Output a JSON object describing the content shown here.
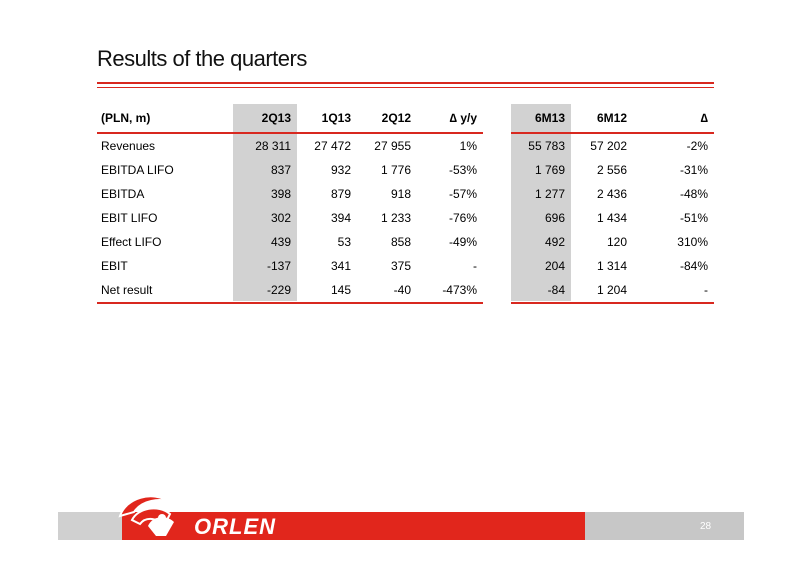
{
  "slide": {
    "title": "Results of the quarters",
    "page_number": "28",
    "brand": "ORLEN"
  },
  "table": {
    "headers": [
      "(PLN, m)",
      "2Q13",
      "1Q13",
      "2Q12",
      "∆ y/y",
      "6M13",
      "6M12",
      "∆"
    ],
    "rows": [
      [
        "Revenues",
        "28 311",
        "27 472",
        "27 955",
        "1%",
        "55 783",
        "57 202",
        "-2%"
      ],
      [
        "EBITDA LIFO",
        "837",
        "932",
        "1 776",
        "-53%",
        "1 769",
        "2 556",
        "-31%"
      ],
      [
        "EBITDA",
        "398",
        "879",
        "918",
        "-57%",
        "1 277",
        "2 436",
        "-48%"
      ],
      [
        "EBIT LIFO",
        "302",
        "394",
        "1 233",
        "-76%",
        "696",
        "1 434",
        "-51%"
      ],
      [
        "Effect LIFO",
        "439",
        "53",
        "858",
        "-49%",
        "492",
        "120",
        "310%"
      ],
      [
        "EBIT",
        "-137",
        "341",
        "375",
        "-",
        "204",
        "1 314",
        "-84%"
      ],
      [
        "Net result",
        "-229",
        "145",
        "-40",
        "-473%",
        "-84",
        "1 204",
        "-"
      ]
    ]
  },
  "colors": {
    "accent_red": "#d8281f",
    "footer_red": "#e1261c",
    "highlight_gray": "#d2d2d2",
    "footer_gray": "#c7c7c7"
  }
}
